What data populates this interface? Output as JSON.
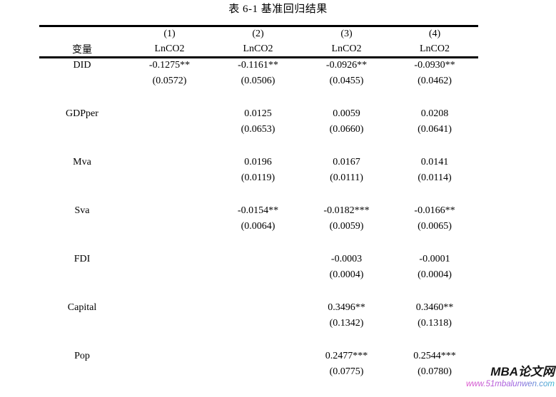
{
  "title": "表 6-1 基准回归结果",
  "table": {
    "var_header": "变量",
    "dep_var": "LnCO2",
    "model_numbers": [
      "(1)",
      "(2)",
      "(3)",
      "(4)"
    ],
    "rows": [
      {
        "variable": "DID",
        "cells": [
          {
            "coef": "-0.1275**",
            "se": "(0.0572)"
          },
          {
            "coef": "-0.1161**",
            "se": "(0.0506)"
          },
          {
            "coef": "-0.0926**",
            "se": "(0.0455)"
          },
          {
            "coef": "-0.0930**",
            "se": "(0.0462)"
          }
        ]
      },
      {
        "variable": "GDPper",
        "cells": [
          null,
          {
            "coef": "0.0125",
            "se": "(0.0653)"
          },
          {
            "coef": "0.0059",
            "se": "(0.0660)"
          },
          {
            "coef": "0.0208",
            "se": "(0.0641)"
          }
        ]
      },
      {
        "variable": "Mva",
        "cells": [
          null,
          {
            "coef": "0.0196",
            "se": "(0.0119)"
          },
          {
            "coef": "0.0167",
            "se": "(0.0111)"
          },
          {
            "coef": "0.0141",
            "se": "(0.0114)"
          }
        ]
      },
      {
        "variable": "Sva",
        "cells": [
          null,
          {
            "coef": "-0.0154**",
            "se": "(0.0064)"
          },
          {
            "coef": "-0.0182***",
            "se": "(0.0059)"
          },
          {
            "coef": "-0.0166**",
            "se": "(0.0065)"
          }
        ]
      },
      {
        "variable": "FDI",
        "cells": [
          null,
          null,
          {
            "coef": "-0.0003",
            "se": "(0.0004)"
          },
          {
            "coef": "-0.0001",
            "se": "(0.0004)"
          }
        ]
      },
      {
        "variable": "Capital",
        "cells": [
          null,
          null,
          {
            "coef": "0.3496**",
            "se": "(0.1342)"
          },
          {
            "coef": "0.3460**",
            "se": "(0.1318)"
          }
        ]
      },
      {
        "variable": "Pop",
        "cells": [
          null,
          null,
          {
            "coef": "0.2477***",
            "se": "(0.0775)"
          },
          {
            "coef": "0.2544***",
            "se": "(0.0780)"
          }
        ]
      }
    ]
  },
  "watermark": {
    "site_name": "MBA论文网",
    "site_url": "www.51mbalunwen.com",
    "name_color": "#151515",
    "url_gradient_start": "#de52cc",
    "url_gradient_end": "#35b6cf"
  }
}
